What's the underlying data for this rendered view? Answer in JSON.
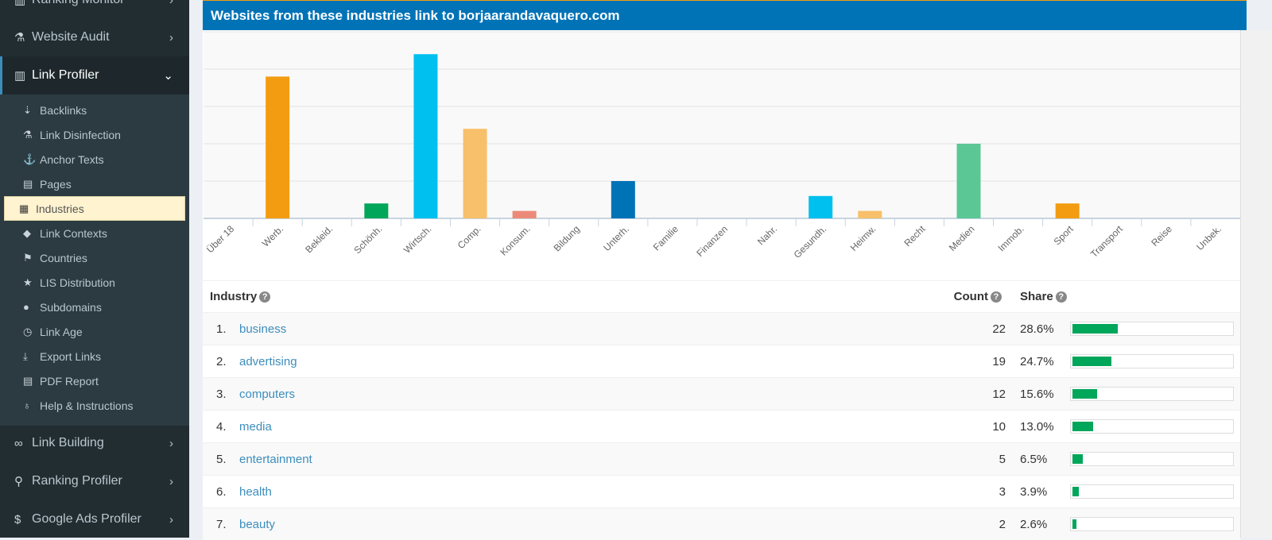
{
  "sidebar": {
    "top": [
      {
        "label": "Ranking Monitor",
        "icon": "bar-chart-icon"
      },
      {
        "label": "Website Audit",
        "icon": "flask-icon"
      },
      {
        "label": "Link Profiler",
        "icon": "bar-chart-icon",
        "active": true
      }
    ],
    "sub": [
      {
        "label": "Backlinks",
        "icon": "sort-icon"
      },
      {
        "label": "Link Disinfection",
        "icon": "flask-icon"
      },
      {
        "label": "Anchor Texts",
        "icon": "anchor-icon"
      },
      {
        "label": "Pages",
        "icon": "file-icon"
      },
      {
        "label": "Industries",
        "icon": "building-icon",
        "selected": true
      },
      {
        "label": "Link Contexts",
        "icon": "tags-icon"
      },
      {
        "label": "Countries",
        "icon": "flag-icon"
      },
      {
        "label": "LIS Distribution",
        "icon": "star-icon"
      },
      {
        "label": "Subdomains",
        "icon": "globe-icon"
      },
      {
        "label": "Link Age",
        "icon": "clock-icon"
      },
      {
        "label": "Export Links",
        "icon": "download-icon"
      },
      {
        "label": "PDF Report",
        "icon": "file-icon"
      },
      {
        "label": "Help & Instructions",
        "icon": "lightbulb-icon"
      }
    ],
    "bottom": [
      {
        "label": "Link Building",
        "icon": "link-icon"
      },
      {
        "label": "Ranking Profiler",
        "icon": "search-icon"
      },
      {
        "label": "Google Ads Profiler",
        "icon": "dollar-icon"
      }
    ]
  },
  "panel": {
    "title": "Websites from these industries link to borjaarandavaquero.com"
  },
  "chart_data": {
    "type": "bar",
    "categories": [
      "Über 18",
      "Werb.",
      "Bekleid.",
      "Schönh.",
      "Wirtsch.",
      "Comp.",
      "Konsum.",
      "Bildung",
      "Unterh.",
      "Familie",
      "Finanzen",
      "Nahr.",
      "Gesundh.",
      "Heimw.",
      "Recht",
      "Medien",
      "Immob.",
      "Sport",
      "Transport",
      "Reise",
      "Unbek."
    ],
    "values": [
      0,
      19,
      0,
      2,
      22,
      12,
      1,
      0,
      5,
      0,
      0,
      0,
      3,
      1,
      0,
      10,
      0,
      2,
      0,
      0,
      0
    ],
    "colors": [
      "#f39c12",
      "#f39c12",
      "#f39c12",
      "#00a65a",
      "#00c0ef",
      "#f8c06a",
      "#ec8a7a",
      "#f39c12",
      "#0073b7",
      "#f39c12",
      "#f39c12",
      "#f39c12",
      "#00c0ef",
      "#f8c06a",
      "#f39c12",
      "#5bc794",
      "#f39c12",
      "#f39c12",
      "#f39c12",
      "#f39c12",
      "#f39c12"
    ],
    "ylim": [
      0,
      25
    ],
    "grid": true
  },
  "table": {
    "headers": {
      "industry": "Industry",
      "count": "Count",
      "share": "Share"
    },
    "rows": [
      {
        "rank": "1.",
        "name": "business",
        "count": "22",
        "share": "28.6%",
        "pct": 28.6
      },
      {
        "rank": "2.",
        "name": "advertising",
        "count": "19",
        "share": "24.7%",
        "pct": 24.7
      },
      {
        "rank": "3.",
        "name": "computers",
        "count": "12",
        "share": "15.6%",
        "pct": 15.6
      },
      {
        "rank": "4.",
        "name": "media",
        "count": "10",
        "share": "13.0%",
        "pct": 13.0
      },
      {
        "rank": "5.",
        "name": "entertainment",
        "count": "5",
        "share": "6.5%",
        "pct": 6.5
      },
      {
        "rank": "6.",
        "name": "health",
        "count": "3",
        "share": "3.9%",
        "pct": 3.9
      },
      {
        "rank": "7.",
        "name": "beauty",
        "count": "2",
        "share": "2.6%",
        "pct": 2.6
      }
    ]
  }
}
